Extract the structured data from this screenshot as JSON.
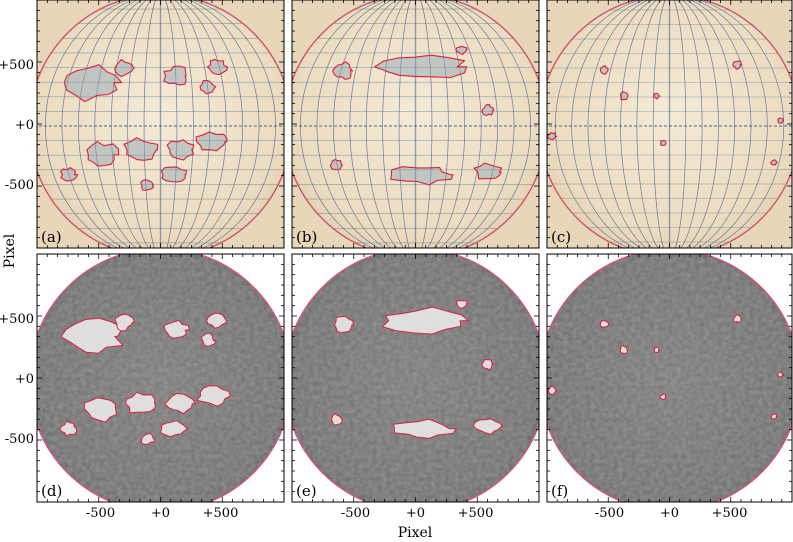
{
  "figure": {
    "panels": [
      {
        "id": "a",
        "label": "(a)",
        "kind": "drawing"
      },
      {
        "id": "b",
        "label": "(b)",
        "kind": "drawing"
      },
      {
        "id": "c",
        "label": "(c)",
        "kind": "drawing"
      },
      {
        "id": "d",
        "label": "(d)",
        "kind": "magnetogram"
      },
      {
        "id": "e",
        "label": "(e)",
        "kind": "magnetogram"
      },
      {
        "id": "f",
        "label": "(f)",
        "kind": "magnetogram"
      }
    ],
    "y_axis": {
      "label": "Pixel",
      "ticks": [
        "+500",
        "+0",
        "-500"
      ]
    },
    "x_axis": {
      "label": "Pixel",
      "ticks": [
        "-500",
        "+0",
        "+500"
      ]
    },
    "colors": {
      "contour": "#d8203c",
      "limb": "#e0506a",
      "drawing_paper": "#eedfc4",
      "grid_blue": "#3a5e94",
      "magnetogram_gray": "#6e6e6e"
    }
  }
}
